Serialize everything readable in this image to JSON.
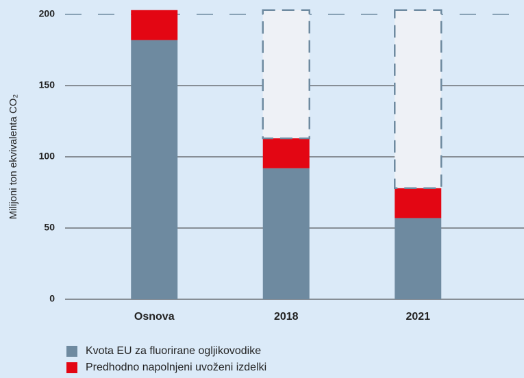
{
  "chart_data": {
    "type": "stacked_bar",
    "y_axis_label": "Milijoni ton ekvivalenta CO₂",
    "categories": [
      "Osnova",
      "2018",
      "2021"
    ],
    "series": [
      {
        "name": "Kvota EU za fluorirane ogljikovodike",
        "color": "#6e8aa0",
        "values": [
          182,
          92,
          57
        ]
      },
      {
        "name": "Predhodno napolnjeni uvoženi izdelki",
        "color": "#e30613",
        "values": [
          21,
          21,
          21
        ]
      },
      {
        "color": "#eef1f6",
        "values": [
          0,
          90,
          125
        ]
      }
    ],
    "ylim": [
      0,
      200
    ],
    "yticks": [
      0,
      50,
      100,
      150,
      200
    ],
    "grid": true
  }
}
